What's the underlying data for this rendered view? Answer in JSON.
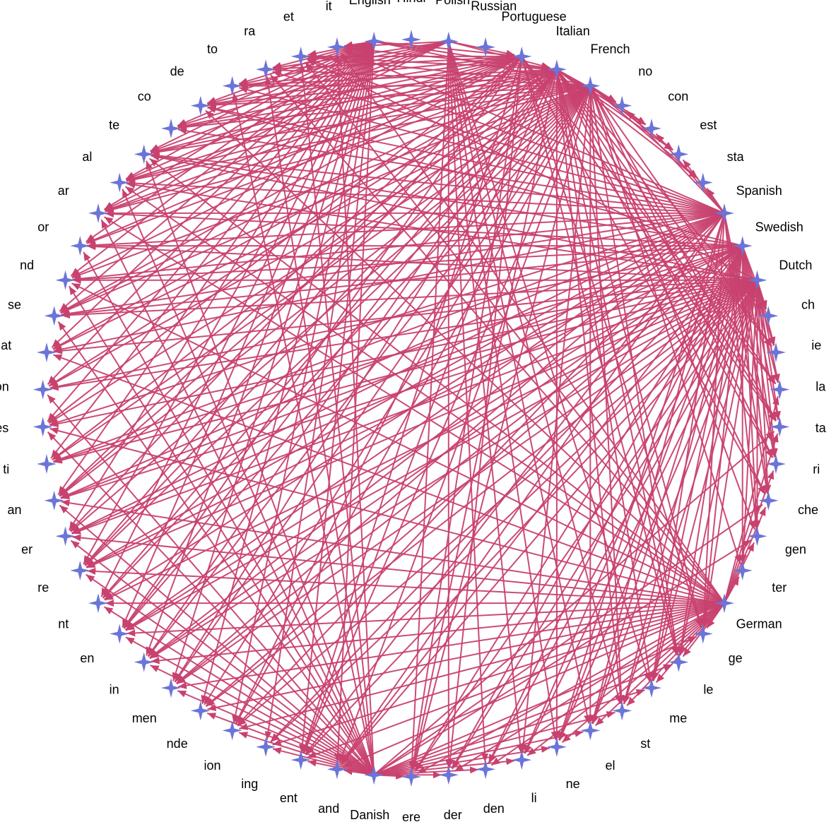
{
  "diagram": {
    "type": "directed-graph",
    "layout": "circular",
    "colors": {
      "edge": "#c8416f",
      "node": "#6b74d8",
      "label": "#000000",
      "background": "#ffffff"
    },
    "node_shape": "four-point-star",
    "nodes": [
      "Hindi",
      "Polish",
      "Russian",
      "Portuguese",
      "Italian",
      "French",
      "no",
      "con",
      "est",
      "sta",
      "Spanish",
      "Swedish",
      "Dutch",
      "ch",
      "ie",
      "la",
      "ta",
      "ri",
      "che",
      "gen",
      "ter",
      "German",
      "ge",
      "le",
      "me",
      "st",
      "el",
      "ne",
      "li",
      "den",
      "der",
      "ere",
      "Danish",
      "and",
      "ent",
      "ing",
      "ion",
      "nde",
      "men",
      "in",
      "en",
      "nt",
      "re",
      "er",
      "an",
      "ti",
      "es",
      "on",
      "at",
      "se",
      "nd",
      "or",
      "ar",
      "al",
      "te",
      "co",
      "de",
      "to",
      "ra",
      "et",
      "it",
      "English"
    ],
    "edges": [
      [
        "English",
        "it"
      ],
      [
        "English",
        "et"
      ],
      [
        "English",
        "ra"
      ],
      [
        "English",
        "to"
      ],
      [
        "English",
        "de"
      ],
      [
        "English",
        "co"
      ],
      [
        "English",
        "te"
      ],
      [
        "English",
        "al"
      ],
      [
        "English",
        "ar"
      ],
      [
        "English",
        "or"
      ],
      [
        "English",
        "nd"
      ],
      [
        "English",
        "se"
      ],
      [
        "English",
        "at"
      ],
      [
        "English",
        "on"
      ],
      [
        "English",
        "es"
      ],
      [
        "English",
        "ti"
      ],
      [
        "English",
        "an"
      ],
      [
        "English",
        "er"
      ],
      [
        "English",
        "re"
      ],
      [
        "English",
        "nt"
      ],
      [
        "English",
        "en"
      ],
      [
        "English",
        "in"
      ],
      [
        "English",
        "men"
      ],
      [
        "English",
        "nde"
      ],
      [
        "English",
        "ion"
      ],
      [
        "English",
        "ing"
      ],
      [
        "English",
        "ent"
      ],
      [
        "English",
        "and"
      ],
      [
        "English",
        "Italian"
      ],
      [
        "English",
        "Portuguese"
      ],
      [
        "English",
        "French"
      ],
      [
        "Polish",
        "it"
      ],
      [
        "Polish",
        "ra"
      ],
      [
        "Polish",
        "to"
      ],
      [
        "Polish",
        "de"
      ],
      [
        "Polish",
        "co"
      ],
      [
        "Polish",
        "te"
      ],
      [
        "Polish",
        "al"
      ],
      [
        "Polish",
        "ar"
      ],
      [
        "Polish",
        "Portuguese"
      ],
      [
        "Polish",
        "Italian"
      ],
      [
        "Polish",
        "ne"
      ],
      [
        "Polish",
        "li"
      ],
      [
        "Polish",
        "el"
      ],
      [
        "Polish",
        "st"
      ],
      [
        "Polish",
        "me"
      ],
      [
        "Polish",
        "den"
      ],
      [
        "Polish",
        "der"
      ],
      [
        "Polish",
        "ere"
      ],
      [
        "Portuguese",
        "et"
      ],
      [
        "Portuguese",
        "ra"
      ],
      [
        "Portuguese",
        "to"
      ],
      [
        "Portuguese",
        "de"
      ],
      [
        "Portuguese",
        "co"
      ],
      [
        "Portuguese",
        "te"
      ],
      [
        "Portuguese",
        "al"
      ],
      [
        "Portuguese",
        "ar"
      ],
      [
        "Portuguese",
        "or"
      ],
      [
        "Portuguese",
        "nd"
      ],
      [
        "Portuguese",
        "se"
      ],
      [
        "Portuguese",
        "es"
      ],
      [
        "Portuguese",
        "an"
      ],
      [
        "Portuguese",
        "er"
      ],
      [
        "Portuguese",
        "re"
      ],
      [
        "Portuguese",
        "en"
      ],
      [
        "Portuguese",
        "ent"
      ],
      [
        "Portuguese",
        "ere"
      ],
      [
        "Portuguese",
        "der"
      ],
      [
        "Portuguese",
        "le"
      ],
      [
        "Portuguese",
        "ge"
      ],
      [
        "Portuguese",
        "che"
      ],
      [
        "Portuguese",
        "ta"
      ],
      [
        "Portuguese",
        "la"
      ],
      [
        "Italian",
        "it"
      ],
      [
        "Italian",
        "et"
      ],
      [
        "Italian",
        "to"
      ],
      [
        "Italian",
        "de"
      ],
      [
        "Italian",
        "co"
      ],
      [
        "Italian",
        "te"
      ],
      [
        "Italian",
        "al"
      ],
      [
        "Italian",
        "ar"
      ],
      [
        "Italian",
        "or"
      ],
      [
        "Italian",
        "se"
      ],
      [
        "Italian",
        "at"
      ],
      [
        "Italian",
        "on"
      ],
      [
        "Italian",
        "ti"
      ],
      [
        "Italian",
        "an"
      ],
      [
        "Italian",
        "re"
      ],
      [
        "Italian",
        "nt"
      ],
      [
        "Italian",
        "en"
      ],
      [
        "Italian",
        "in"
      ],
      [
        "Italian",
        "men"
      ],
      [
        "Italian",
        "ion"
      ],
      [
        "Italian",
        "ent"
      ],
      [
        "Italian",
        "ere"
      ],
      [
        "Italian",
        "ne"
      ],
      [
        "Italian",
        "st"
      ],
      [
        "Italian",
        "me"
      ],
      [
        "Italian",
        "le"
      ],
      [
        "Italian",
        "ge"
      ],
      [
        "Italian",
        "che"
      ],
      [
        "Italian",
        "ri"
      ],
      [
        "Italian",
        "ta"
      ],
      [
        "Italian",
        "la"
      ],
      [
        "Italian",
        "ie"
      ],
      [
        "Italian",
        "ch"
      ],
      [
        "Italian",
        "no"
      ],
      [
        "Italian",
        "con"
      ],
      [
        "Italian",
        "est"
      ],
      [
        "Italian",
        "sta"
      ],
      [
        "French",
        "et"
      ],
      [
        "French",
        "ra"
      ],
      [
        "French",
        "to"
      ],
      [
        "French",
        "de"
      ],
      [
        "French",
        "co"
      ],
      [
        "French",
        "te"
      ],
      [
        "French",
        "al"
      ],
      [
        "French",
        "ar"
      ],
      [
        "French",
        "nd"
      ],
      [
        "French",
        "se"
      ],
      [
        "French",
        "at"
      ],
      [
        "French",
        "on"
      ],
      [
        "French",
        "es"
      ],
      [
        "French",
        "ti"
      ],
      [
        "French",
        "an"
      ],
      [
        "French",
        "er"
      ],
      [
        "French",
        "re"
      ],
      [
        "French",
        "nt"
      ],
      [
        "French",
        "en"
      ],
      [
        "French",
        "in"
      ],
      [
        "French",
        "men"
      ],
      [
        "French",
        "nde"
      ],
      [
        "French",
        "ion"
      ],
      [
        "French",
        "ent"
      ],
      [
        "French",
        "and"
      ],
      [
        "French",
        "ere"
      ],
      [
        "French",
        "li"
      ],
      [
        "French",
        "el"
      ],
      [
        "French",
        "st"
      ],
      [
        "French",
        "le"
      ],
      [
        "French",
        "gen"
      ],
      [
        "French",
        "ter"
      ],
      [
        "French",
        "ri"
      ],
      [
        "French",
        "ta"
      ],
      [
        "French",
        "ie"
      ],
      [
        "French",
        "no"
      ],
      [
        "French",
        "con"
      ],
      [
        "French",
        "est"
      ],
      [
        "French",
        "sta"
      ],
      [
        "Spanish",
        "it"
      ],
      [
        "Spanish",
        "et"
      ],
      [
        "Spanish",
        "ra"
      ],
      [
        "Spanish",
        "to"
      ],
      [
        "Spanish",
        "de"
      ],
      [
        "Spanish",
        "co"
      ],
      [
        "Spanish",
        "te"
      ],
      [
        "Spanish",
        "al"
      ],
      [
        "Spanish",
        "ar"
      ],
      [
        "Spanish",
        "or"
      ],
      [
        "Spanish",
        "nd"
      ],
      [
        "Spanish",
        "se"
      ],
      [
        "Spanish",
        "at"
      ],
      [
        "Spanish",
        "es"
      ],
      [
        "Spanish",
        "ti"
      ],
      [
        "Spanish",
        "an"
      ],
      [
        "Spanish",
        "er"
      ],
      [
        "Spanish",
        "re"
      ],
      [
        "Spanish",
        "nt"
      ],
      [
        "Spanish",
        "en"
      ],
      [
        "Spanish",
        "in"
      ],
      [
        "Spanish",
        "men"
      ],
      [
        "Spanish",
        "ion"
      ],
      [
        "Spanish",
        "ent"
      ],
      [
        "Spanish",
        "and"
      ],
      [
        "Spanish",
        "el"
      ],
      [
        "Spanish",
        "ne"
      ],
      [
        "Spanish",
        "me"
      ],
      [
        "Spanish",
        "ge"
      ],
      [
        "Spanish",
        "ri"
      ],
      [
        "Spanish",
        "che"
      ],
      [
        "Spanish",
        "gen"
      ],
      [
        "Spanish",
        "con"
      ],
      [
        "Spanish",
        "est"
      ],
      [
        "Spanish",
        "sta"
      ],
      [
        "Spanish",
        "no"
      ],
      [
        "Swedish",
        "de"
      ],
      [
        "Swedish",
        "te"
      ],
      [
        "Swedish",
        "ar"
      ],
      [
        "Swedish",
        "or"
      ],
      [
        "Swedish",
        "nd"
      ],
      [
        "Swedish",
        "se"
      ],
      [
        "Swedish",
        "on"
      ],
      [
        "Swedish",
        "ti"
      ],
      [
        "Swedish",
        "an"
      ],
      [
        "Swedish",
        "er"
      ],
      [
        "Swedish",
        "re"
      ],
      [
        "Swedish",
        "en"
      ],
      [
        "Swedish",
        "in"
      ],
      [
        "Swedish",
        "men"
      ],
      [
        "Swedish",
        "nde"
      ],
      [
        "Swedish",
        "ing"
      ],
      [
        "Swedish",
        "and"
      ],
      [
        "Swedish",
        "ere"
      ],
      [
        "Swedish",
        "der"
      ],
      [
        "Swedish",
        "den"
      ],
      [
        "Swedish",
        "li"
      ],
      [
        "Swedish",
        "ne"
      ],
      [
        "Swedish",
        "el"
      ],
      [
        "Swedish",
        "st"
      ],
      [
        "Swedish",
        "me"
      ],
      [
        "Swedish",
        "le"
      ],
      [
        "Swedish",
        "ge"
      ],
      [
        "Swedish",
        "ter"
      ],
      [
        "Swedish",
        "gen"
      ],
      [
        "Swedish",
        "che"
      ],
      [
        "Swedish",
        "ri"
      ],
      [
        "Swedish",
        "ta"
      ],
      [
        "Swedish",
        "la"
      ],
      [
        "Swedish",
        "ie"
      ],
      [
        "Swedish",
        "ch"
      ],
      [
        "Dutch",
        "et"
      ],
      [
        "Dutch",
        "te"
      ],
      [
        "Dutch",
        "al"
      ],
      [
        "Dutch",
        "or"
      ],
      [
        "Dutch",
        "nd"
      ],
      [
        "Dutch",
        "se"
      ],
      [
        "Dutch",
        "at"
      ],
      [
        "Dutch",
        "on"
      ],
      [
        "Dutch",
        "es"
      ],
      [
        "Dutch",
        "ti"
      ],
      [
        "Dutch",
        "an"
      ],
      [
        "Dutch",
        "er"
      ],
      [
        "Dutch",
        "re"
      ],
      [
        "Dutch",
        "nt"
      ],
      [
        "Dutch",
        "en"
      ],
      [
        "Dutch",
        "in"
      ],
      [
        "Dutch",
        "men"
      ],
      [
        "Dutch",
        "nde"
      ],
      [
        "Dutch",
        "ion"
      ],
      [
        "Dutch",
        "ing"
      ],
      [
        "Dutch",
        "ent"
      ],
      [
        "Dutch",
        "and"
      ],
      [
        "Dutch",
        "ere"
      ],
      [
        "Dutch",
        "der"
      ],
      [
        "Dutch",
        "den"
      ],
      [
        "Dutch",
        "li"
      ],
      [
        "Dutch",
        "ne"
      ],
      [
        "Dutch",
        "el"
      ],
      [
        "Dutch",
        "st"
      ],
      [
        "Dutch",
        "me"
      ],
      [
        "Dutch",
        "le"
      ],
      [
        "Dutch",
        "ge"
      ],
      [
        "Dutch",
        "ter"
      ],
      [
        "Dutch",
        "gen"
      ],
      [
        "Dutch",
        "che"
      ],
      [
        "Dutch",
        "ri"
      ],
      [
        "Dutch",
        "ta"
      ],
      [
        "Dutch",
        "la"
      ],
      [
        "Dutch",
        "ie"
      ],
      [
        "Dutch",
        "ch"
      ],
      [
        "German",
        "it"
      ],
      [
        "German",
        "et"
      ],
      [
        "German",
        "ra"
      ],
      [
        "German",
        "de"
      ],
      [
        "German",
        "te"
      ],
      [
        "German",
        "al"
      ],
      [
        "German",
        "ar"
      ],
      [
        "German",
        "nd"
      ],
      [
        "German",
        "at"
      ],
      [
        "German",
        "es"
      ],
      [
        "German",
        "an"
      ],
      [
        "German",
        "er"
      ],
      [
        "German",
        "re"
      ],
      [
        "German",
        "nt"
      ],
      [
        "German",
        "en"
      ],
      [
        "German",
        "in"
      ],
      [
        "German",
        "men"
      ],
      [
        "German",
        "nde"
      ],
      [
        "German",
        "ion"
      ],
      [
        "German",
        "ing"
      ],
      [
        "German",
        "ent"
      ],
      [
        "German",
        "and"
      ],
      [
        "German",
        "ere"
      ],
      [
        "German",
        "der"
      ],
      [
        "German",
        "den"
      ],
      [
        "German",
        "li"
      ],
      [
        "German",
        "ne"
      ],
      [
        "German",
        "el"
      ],
      [
        "German",
        "st"
      ],
      [
        "German",
        "me"
      ],
      [
        "German",
        "le"
      ],
      [
        "German",
        "ge"
      ],
      [
        "German",
        "ter"
      ],
      [
        "German",
        "gen"
      ],
      [
        "German",
        "che"
      ],
      [
        "German",
        "ri"
      ],
      [
        "German",
        "ta"
      ],
      [
        "German",
        "la"
      ],
      [
        "Danish",
        "it"
      ],
      [
        "Danish",
        "et"
      ],
      [
        "Danish",
        "ra"
      ],
      [
        "Danish",
        "to"
      ],
      [
        "Danish",
        "te"
      ],
      [
        "Danish",
        "al"
      ],
      [
        "Danish",
        "ar"
      ],
      [
        "Danish",
        "or"
      ],
      [
        "Danish",
        "nd"
      ],
      [
        "Danish",
        "se"
      ],
      [
        "Danish",
        "on"
      ],
      [
        "Danish",
        "es"
      ],
      [
        "Danish",
        "an"
      ],
      [
        "Danish",
        "er"
      ],
      [
        "Danish",
        "re"
      ],
      [
        "Danish",
        "nt"
      ],
      [
        "Danish",
        "en"
      ],
      [
        "Danish",
        "in"
      ],
      [
        "Danish",
        "men"
      ],
      [
        "Danish",
        "nde"
      ],
      [
        "Danish",
        "ion"
      ],
      [
        "Danish",
        "ing"
      ],
      [
        "Danish",
        "ent"
      ],
      [
        "Danish",
        "and"
      ],
      [
        "Danish",
        "ere"
      ],
      [
        "Danish",
        "der"
      ],
      [
        "Danish",
        "den"
      ],
      [
        "Danish",
        "li"
      ],
      [
        "Danish",
        "ne"
      ],
      [
        "Danish",
        "el"
      ],
      [
        "Danish",
        "st"
      ],
      [
        "Danish",
        "me"
      ],
      [
        "Danish",
        "le"
      ],
      [
        "Danish",
        "ge"
      ],
      [
        "Danish",
        "gen"
      ],
      [
        "Danish",
        "che"
      ],
      [
        "Danish",
        "ta"
      ]
    ]
  }
}
